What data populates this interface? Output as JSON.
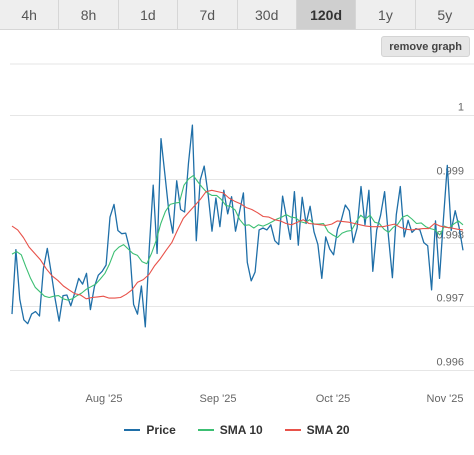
{
  "tabs": [
    {
      "label": "4h",
      "active": false
    },
    {
      "label": "8h",
      "active": false
    },
    {
      "label": "1d",
      "active": false
    },
    {
      "label": "7d",
      "active": false
    },
    {
      "label": "30d",
      "active": false
    },
    {
      "label": "120d",
      "active": true
    },
    {
      "label": "1y",
      "active": false
    },
    {
      "label": "5y",
      "active": false
    }
  ],
  "remove_graph_label": "remove graph",
  "chart_data": {
    "type": "line",
    "title": "",
    "xlabel": "",
    "ylabel": "",
    "x_ticks": [
      "Aug '25",
      "Sep '25",
      "Oct '25",
      "Nov '25"
    ],
    "y_ticks": [
      0.996,
      0.997,
      0.998,
      0.999,
      1
    ],
    "y_tick_labels": [
      "0.996",
      "0.997",
      "0.998",
      "0.999",
      "1"
    ],
    "ylim": [
      0.9958,
      1.0008
    ],
    "grid": true,
    "legend_position": "bottom",
    "series": [
      {
        "name": "Price",
        "color": "#1f6fa8",
        "values": [
          0.99688,
          0.99789,
          0.99711,
          0.99679,
          0.99673,
          0.99688,
          0.99692,
          0.99685,
          0.99759,
          0.99791,
          0.99753,
          0.99712,
          0.99677,
          0.99717,
          0.99718,
          0.99701,
          0.99721,
          0.99744,
          0.99735,
          0.99752,
          0.99695,
          0.99731,
          0.99749,
          0.99755,
          0.99765,
          0.9984,
          0.9986,
          0.99819,
          0.99814,
          0.99815,
          0.9979,
          0.99703,
          0.99688,
          0.99732,
          0.99668,
          0.99792,
          0.9989,
          0.99783,
          0.99963,
          0.99907,
          0.99848,
          0.99815,
          0.99897,
          0.99852,
          0.99848,
          0.99925,
          0.99984,
          0.99803,
          0.99898,
          0.9992,
          0.99876,
          0.99818,
          0.9987,
          0.99825,
          0.99882,
          0.99845,
          0.99872,
          0.99818,
          0.99848,
          0.99878,
          0.99769,
          0.9974,
          0.99754,
          0.9982,
          0.99823,
          0.9982,
          0.99828,
          0.99803,
          0.99797,
          0.99873,
          0.99839,
          0.99805,
          0.9988,
          0.99796,
          0.99871,
          0.9983,
          0.99857,
          0.99817,
          0.99797,
          0.99744,
          0.99809,
          0.9979,
          0.99781,
          0.99821,
          0.99836,
          0.99859,
          0.9985,
          0.998,
          0.99823,
          0.99888,
          0.99828,
          0.99882,
          0.99755,
          0.9982,
          0.99843,
          0.9988,
          0.99809,
          0.99745,
          0.99844,
          0.99888,
          0.99809,
          0.99835,
          0.99816,
          0.99822,
          0.9982,
          0.998,
          0.99795,
          0.99726,
          0.99834,
          0.99744,
          0.99836,
          0.99921,
          0.99819,
          0.9985,
          0.99824,
          0.99788
        ]
      },
      {
        "name": "SMA 10",
        "color": "#3cbf73",
        "values": [
          0.99782,
          0.99786,
          0.99781,
          0.99762,
          0.99744,
          0.9973,
          0.99723,
          0.99716,
          0.99714,
          0.99716,
          0.99717,
          0.99712,
          0.9971,
          0.99712,
          0.99717,
          0.99721,
          0.99727,
          0.99731,
          0.99735,
          0.99743,
          0.99752,
          0.99767,
          0.99786,
          0.99793,
          0.99797,
          0.9979,
          0.99783,
          0.9978,
          0.9977,
          0.99767,
          0.99783,
          0.99803,
          0.9983,
          0.99849,
          0.9986,
          0.99862,
          0.99863,
          0.9989,
          0.999,
          0.99905,
          0.99895,
          0.99886,
          0.99878,
          0.99874,
          0.99874,
          0.99868,
          0.99858,
          0.99857,
          0.99851,
          0.99836,
          0.99827,
          0.99828,
          0.99823,
          0.99828,
          0.99826,
          0.99829,
          0.99833,
          0.99837,
          0.9984,
          0.99844,
          0.9984,
          0.99839,
          0.99833,
          0.99831,
          0.99836,
          0.99829,
          0.99829,
          0.9983,
          0.99817,
          0.99812,
          0.99808,
          0.99815,
          0.99818,
          0.99819,
          0.99832,
          0.99843,
          0.99837,
          0.99843,
          0.99832,
          0.9983,
          0.99821,
          0.99816,
          0.99824,
          0.99829,
          0.9984,
          0.99843,
          0.99837,
          0.9983,
          0.99831,
          0.99825,
          0.99822,
          0.9982,
          0.99812,
          0.99826,
          0.99823,
          0.99829,
          0.99834,
          0.99828
        ]
      },
      {
        "name": "SMA 20",
        "color": "#e8524a",
        "values": [
          0.99826,
          0.9982,
          0.99808,
          0.99793,
          0.99783,
          0.99773,
          0.99759,
          0.99748,
          0.99741,
          0.99732,
          0.99726,
          0.9972,
          0.99718,
          0.99712,
          0.99714,
          0.99715,
          0.99716,
          0.99713,
          0.99713,
          0.99714,
          0.99719,
          0.99726,
          0.99738,
          0.99742,
          0.9975,
          0.99764,
          0.99775,
          0.99788,
          0.998,
          0.9982,
          0.99838,
          0.99848,
          0.99858,
          0.99868,
          0.9988,
          0.99882,
          0.9988,
          0.99878,
          0.9987,
          0.99865,
          0.99861,
          0.99855,
          0.99852,
          0.99847,
          0.99841,
          0.9984,
          0.99836,
          0.99834,
          0.9983,
          0.99828,
          0.99832,
          0.99836,
          0.9983,
          0.99829,
          0.99828,
          0.99827,
          0.99829,
          0.99834,
          0.99833,
          0.99832,
          0.9983,
          0.99828,
          0.99826,
          0.99825,
          0.99825,
          0.99825,
          0.99827,
          0.99829,
          0.99824,
          0.99821,
          0.9982,
          0.99821,
          0.99822,
          0.99822,
          0.9983,
          0.99826,
          0.99824,
          0.99823,
          0.99821,
          0.9982
        ]
      }
    ]
  }
}
